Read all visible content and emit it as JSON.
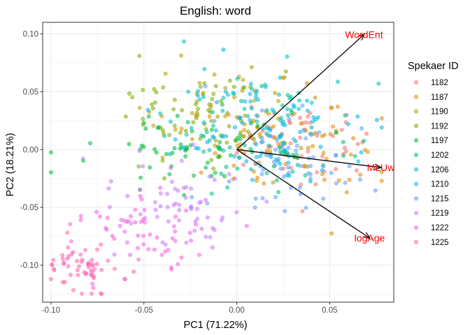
{
  "chart_data": {
    "type": "scatter",
    "title": "English: word",
    "xlabel": "PC1 (71.22%)",
    "ylabel": "PC2 (18.21%)",
    "xlim": [
      -0.1045,
      0.0845
    ],
    "ylim": [
      -0.132,
      0.11
    ],
    "x_ticks": [
      -0.1,
      -0.05,
      0.0,
      0.05
    ],
    "x_tick_labels": [
      "-0.10",
      "-0.05",
      "0.00",
      "0.05"
    ],
    "y_ticks": [
      -0.1,
      -0.05,
      0.0,
      0.05,
      0.1
    ],
    "y_tick_labels": [
      "-0.10",
      "-0.05",
      "0.00",
      "0.05",
      "0.10"
    ],
    "grid": true,
    "legend": {
      "title": "Spekaer ID",
      "position": "right",
      "entries": [
        {
          "name": "1182",
          "color": "#F8766D",
          "center": [
            0.025,
            0.005
          ],
          "spread": [
            0.025,
            0.025
          ]
        },
        {
          "name": "1187",
          "color": "#DE8C00",
          "center": [
            0.03,
            0.0
          ],
          "spread": [
            0.028,
            0.025
          ]
        },
        {
          "name": "1190",
          "color": "#B79F00",
          "center": [
            0.0,
            0.03
          ],
          "spread": [
            0.035,
            0.025
          ]
        },
        {
          "name": "1192",
          "color": "#7CAE00",
          "center": [
            -0.02,
            0.03
          ],
          "spread": [
            0.03,
            0.025
          ]
        },
        {
          "name": "1197",
          "color": "#00BA38",
          "center": [
            -0.03,
            0.005
          ],
          "spread": [
            0.03,
            0.022
          ]
        },
        {
          "name": "1202",
          "color": "#00C08B",
          "center": [
            0.02,
            0.0
          ],
          "spread": [
            0.028,
            0.025
          ]
        },
        {
          "name": "1206",
          "color": "#00BFC4",
          "center": [
            0.01,
            0.03
          ],
          "spread": [
            0.03,
            0.025
          ]
        },
        {
          "name": "1210",
          "color": "#00B4F0",
          "center": [
            0.02,
            0.01
          ],
          "spread": [
            0.028,
            0.025
          ]
        },
        {
          "name": "1215",
          "color": "#619CFF",
          "center": [
            0.03,
            -0.01
          ],
          "spread": [
            0.025,
            0.025
          ]
        },
        {
          "name": "1219",
          "color": "#C77CFF",
          "center": [
            -0.03,
            -0.05
          ],
          "spread": [
            0.025,
            0.025
          ]
        },
        {
          "name": "1222",
          "color": "#F564E3",
          "center": [
            -0.05,
            -0.07
          ],
          "spread": [
            0.028,
            0.025
          ]
        },
        {
          "name": "1225",
          "color": "#FF64B0",
          "center": [
            -0.08,
            -0.1
          ],
          "spread": [
            0.015,
            0.015
          ]
        }
      ]
    },
    "points_per_series": 60,
    "arrows": [
      {
        "label": "WordEnt",
        "x": 0.0685,
        "y": 0.0995
      },
      {
        "label": "MLUw",
        "x": 0.0775,
        "y": -0.0155
      },
      {
        "label": "logAge",
        "x": 0.0715,
        "y": -0.0765
      }
    ],
    "arrow_origin": [
      0.0,
      0.0
    ]
  }
}
